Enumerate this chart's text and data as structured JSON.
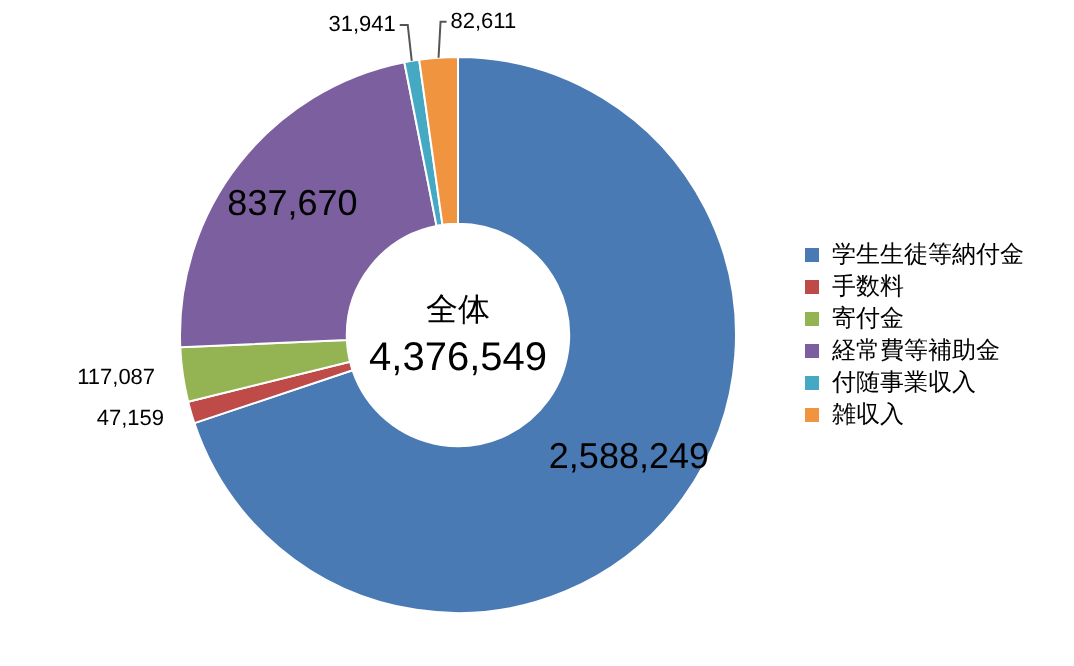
{
  "chart_data": {
    "type": "donut",
    "categories": [
      "学生生徒等納付金",
      "手数料",
      "寄付金",
      "経常費等補助金",
      "付随事業収入",
      "雑収入"
    ],
    "values": [
      2588249,
      47159,
      117087,
      837670,
      31941,
      82611
    ],
    "colors": [
      "#4a7ab4",
      "#be4b48",
      "#94b454",
      "#7b5f9e",
      "#46a9c4",
      "#f0943f"
    ],
    "annotations": [
      "全体",
      "4,376,549"
    ],
    "value_labels": [
      "2,588,249",
      "47,159",
      "117,087",
      "837,670",
      "31,941",
      "82,611"
    ],
    "legend": "right"
  }
}
